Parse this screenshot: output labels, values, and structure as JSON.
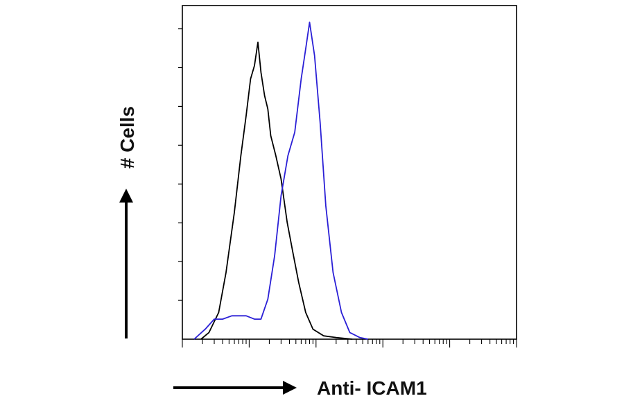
{
  "chart_data": {
    "type": "line",
    "title": "",
    "xlabel": "Anti- ICAM1",
    "ylabel": "# Cells",
    "x_scale": "log",
    "xlim": [
      1,
      100000
    ],
    "ylim": [
      0,
      100
    ],
    "grid": false,
    "legend": "none",
    "series": [
      {
        "color": "#000000",
        "x": [
          1.9,
          2.5,
          3.5,
          4.5,
          6,
          7.5,
          9,
          10.5,
          12,
          13.5,
          15,
          17,
          19,
          21,
          25,
          30,
          37,
          45,
          55,
          70,
          90,
          130,
          200,
          350
        ],
        "y": [
          0,
          2,
          8,
          20,
          38,
          55,
          67,
          78,
          82,
          89,
          80,
          73,
          69,
          61,
          55,
          48,
          35,
          26,
          17,
          8,
          3,
          1,
          0.5,
          0
        ]
      },
      {
        "color": "#2a1fd6",
        "x": [
          1.5,
          2.2,
          3,
          4,
          5.5,
          7,
          9,
          12,
          15,
          19,
          24,
          30,
          38,
          48,
          60,
          70,
          80,
          95,
          115,
          140,
          180,
          240,
          320,
          450,
          600
        ],
        "y": [
          0,
          3,
          6,
          6,
          7,
          7,
          7,
          6,
          6,
          12,
          25,
          43,
          55,
          62,
          78,
          87,
          95,
          85,
          65,
          40,
          20,
          8,
          2,
          0.5,
          0
        ]
      }
    ]
  }
}
